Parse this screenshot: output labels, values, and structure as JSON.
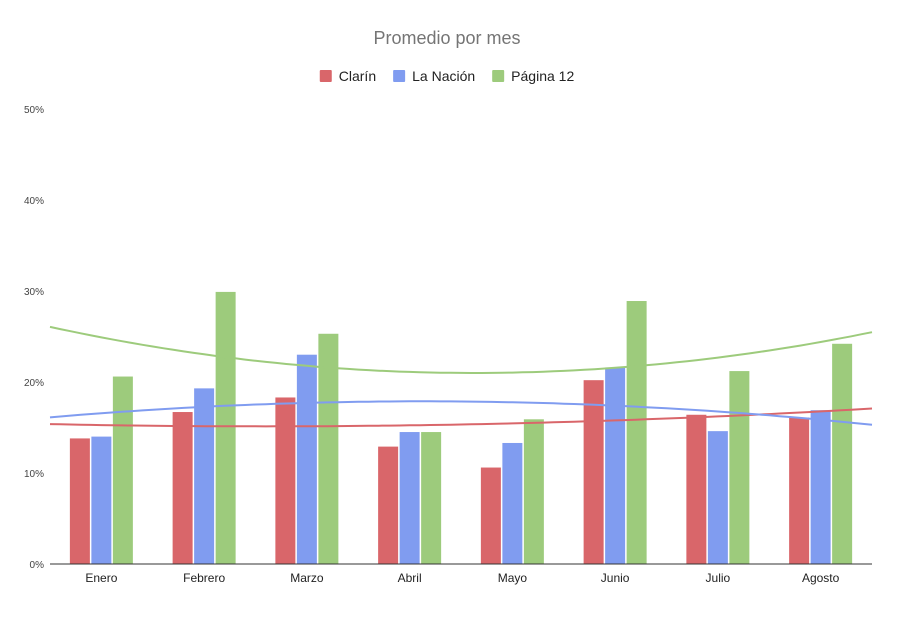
{
  "chart_data": {
    "type": "bar",
    "title": "Promedio por mes",
    "xlabel": "",
    "ylabel": "",
    "categories": [
      "Enero",
      "Febrero",
      "Marzo",
      "Abril",
      "Mayo",
      "Junio",
      "Julio",
      "Agosto"
    ],
    "series": [
      {
        "name": "Clarín",
        "color": "#d9666a",
        "values": [
          13.8,
          16.7,
          18.3,
          12.9,
          10.6,
          20.2,
          16.4,
          16.1
        ]
      },
      {
        "name": "La Nación",
        "color": "#809cf0",
        "values": [
          14.0,
          19.3,
          23.0,
          14.5,
          13.3,
          21.6,
          14.6,
          16.9
        ]
      },
      {
        "name": "Página 12",
        "color": "#9dcb7c",
        "values": [
          20.6,
          29.9,
          25.3,
          14.5,
          15.9,
          28.9,
          21.2,
          24.2
        ]
      }
    ],
    "trendlines": {
      "type": "polynomial",
      "series": [
        "Clarín",
        "La Nación",
        "Página 12"
      ]
    },
    "ylim": [
      0,
      50
    ],
    "yticks": [
      "0%",
      "10%",
      "20%",
      "30%",
      "40%",
      "50%"
    ],
    "grid": false,
    "legend": "top-center"
  }
}
